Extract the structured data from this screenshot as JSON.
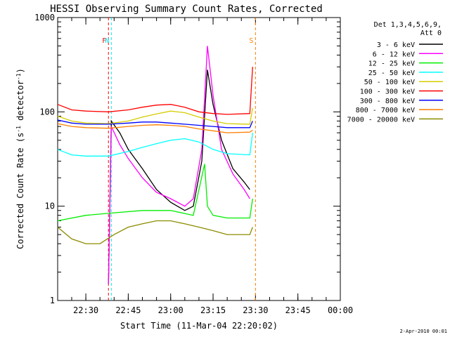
{
  "chart_data": {
    "type": "line",
    "title": "HESSI Observing Summary Count Rates, Corrected",
    "xlabel": "Start Time (11-Mar-04 22:20:02)",
    "ylabel": "Corrected Count Rate (s⁻¹ detector⁻¹)",
    "ylabel_main": "Corrected Count Rate (s",
    "ylabel_sup1": "-1",
    "ylabel_mid": " detector",
    "ylabel_sup2": "-1",
    "ylabel_end": ")",
    "yscale": "log",
    "ylim": [
      1,
      1000
    ],
    "yticks": [
      "1",
      "10",
      "100",
      "1000"
    ],
    "xlim": [
      "22:20:02",
      "00:00:00"
    ],
    "xticks": [
      "22:30",
      "22:45",
      "23:00",
      "23:15",
      "23:30",
      "23:45",
      "00:00"
    ],
    "grid": false,
    "legend_title_1": "Det 1,3,4,5,6,9,",
    "legend_title_2": "Att 0",
    "legend_position": "right",
    "footer": "2-Apr-2010 00:01",
    "flags": [
      {
        "label": "F",
        "color": "#ff0000",
        "at": "22:38"
      },
      {
        "label": "N",
        "color": "#00e5ee",
        "at": "22:39"
      },
      {
        "label": "S",
        "color": "#ff7f00",
        "at": "23:30"
      }
    ],
    "series": [
      {
        "name": "3 - 6 keV",
        "color": "#000000",
        "points": [
          [
            "22:38",
            1.5
          ],
          [
            "22:39",
            80
          ],
          [
            "22:42",
            60
          ],
          [
            "22:45",
            40
          ],
          [
            "22:50",
            25
          ],
          [
            "22:55",
            15
          ],
          [
            "23:00",
            11
          ],
          [
            "23:05",
            9
          ],
          [
            "23:08",
            10
          ],
          [
            "23:11",
            30
          ],
          [
            "23:13",
            280
          ],
          [
            "23:15",
            120
          ],
          [
            "23:18",
            50
          ],
          [
            "23:22",
            25
          ],
          [
            "23:26",
            18
          ],
          [
            "23:28",
            15
          ]
        ]
      },
      {
        "name": "6 - 12 keV",
        "color": "#ff00ff",
        "points": [
          [
            "22:38",
            1.5
          ],
          [
            "22:39",
            70
          ],
          [
            "22:42",
            45
          ],
          [
            "22:45",
            32
          ],
          [
            "22:50",
            20
          ],
          [
            "22:55",
            14
          ],
          [
            "23:00",
            12
          ],
          [
            "23:05",
            10
          ],
          [
            "23:08",
            12
          ],
          [
            "23:11",
            40
          ],
          [
            "23:13",
            500
          ],
          [
            "23:15",
            150
          ],
          [
            "23:18",
            40
          ],
          [
            "23:22",
            22
          ],
          [
            "23:26",
            15
          ],
          [
            "23:28",
            12
          ]
        ]
      },
      {
        "name": "12 - 25 keV",
        "color": "#00ee00",
        "points": [
          [
            "22:20",
            7
          ],
          [
            "22:30",
            8
          ],
          [
            "22:40",
            8.5
          ],
          [
            "22:50",
            9
          ],
          [
            "23:00",
            9
          ],
          [
            "23:08",
            8
          ],
          [
            "23:12",
            28
          ],
          [
            "23:13",
            10
          ],
          [
            "23:15",
            8
          ],
          [
            "23:20",
            7.5
          ],
          [
            "23:28",
            7.5
          ],
          [
            "23:29",
            12
          ]
        ]
      },
      {
        "name": "25 - 50 keV",
        "color": "#00ffff",
        "points": [
          [
            "22:20",
            40
          ],
          [
            "22:25",
            35
          ],
          [
            "22:30",
            34
          ],
          [
            "22:38",
            34
          ],
          [
            "22:45",
            38
          ],
          [
            "22:50",
            42
          ],
          [
            "22:55",
            46
          ],
          [
            "23:00",
            50
          ],
          [
            "23:05",
            52
          ],
          [
            "23:10",
            48
          ],
          [
            "23:15",
            40
          ],
          [
            "23:20",
            36
          ],
          [
            "23:28",
            35
          ],
          [
            "23:29",
            60
          ]
        ]
      },
      {
        "name": "50 - 100 keV",
        "color": "#d4cc00",
        "points": [
          [
            "22:20",
            90
          ],
          [
            "22:25",
            80
          ],
          [
            "22:30",
            76
          ],
          [
            "22:38",
            75
          ],
          [
            "22:45",
            80
          ],
          [
            "22:50",
            88
          ],
          [
            "22:55",
            95
          ],
          [
            "23:00",
            102
          ],
          [
            "23:05",
            98
          ],
          [
            "23:10",
            88
          ],
          [
            "23:15",
            80
          ],
          [
            "23:20",
            75
          ],
          [
            "23:28",
            74
          ],
          [
            "23:29",
            110
          ]
        ]
      },
      {
        "name": "100 - 300 keV",
        "color": "#ff0000",
        "points": [
          [
            "22:20",
            120
          ],
          [
            "22:25",
            105
          ],
          [
            "22:30",
            102
          ],
          [
            "22:38",
            100
          ],
          [
            "22:45",
            105
          ],
          [
            "22:50",
            112
          ],
          [
            "22:55",
            118
          ],
          [
            "23:00",
            120
          ],
          [
            "23:05",
            112
          ],
          [
            "23:10",
            100
          ],
          [
            "23:15",
            96
          ],
          [
            "23:20",
            94
          ],
          [
            "23:28",
            96
          ],
          [
            "23:29",
            300
          ]
        ]
      },
      {
        "name": "300 - 800 keV",
        "color": "#0000ff",
        "points": [
          [
            "22:20",
            82
          ],
          [
            "22:25",
            76
          ],
          [
            "22:30",
            74
          ],
          [
            "22:38",
            74
          ],
          [
            "22:45",
            76
          ],
          [
            "22:50",
            78
          ],
          [
            "22:55",
            78
          ],
          [
            "23:00",
            76
          ],
          [
            "23:05",
            74
          ],
          [
            "23:10",
            72
          ],
          [
            "23:15",
            70
          ],
          [
            "23:20",
            68
          ],
          [
            "23:28",
            68
          ],
          [
            "23:29",
            80
          ]
        ]
      },
      {
        "name": "800 - 7000 keV",
        "color": "#ff7f00",
        "points": [
          [
            "22:20",
            75
          ],
          [
            "22:25",
            70
          ],
          [
            "22:30",
            68
          ],
          [
            "22:38",
            67
          ],
          [
            "22:45",
            70
          ],
          [
            "22:50",
            72
          ],
          [
            "22:55",
            73
          ],
          [
            "23:00",
            72
          ],
          [
            "23:05",
            70
          ],
          [
            "23:10",
            66
          ],
          [
            "23:15",
            63
          ],
          [
            "23:20",
            60
          ],
          [
            "23:28",
            61
          ],
          [
            "23:29",
            64
          ]
        ]
      },
      {
        "name": "7000 - 20000 keV",
        "color": "#8b8b00",
        "points": [
          [
            "22:20",
            6
          ],
          [
            "22:25",
            4.5
          ],
          [
            "22:30",
            4
          ],
          [
            "22:35",
            4
          ],
          [
            "22:40",
            5
          ],
          [
            "22:45",
            6
          ],
          [
            "22:50",
            6.5
          ],
          [
            "22:55",
            7
          ],
          [
            "23:00",
            7
          ],
          [
            "23:05",
            6.5
          ],
          [
            "23:10",
            6
          ],
          [
            "23:15",
            5.5
          ],
          [
            "23:20",
            5
          ],
          [
            "23:28",
            5
          ],
          [
            "23:29",
            6
          ]
        ]
      }
    ]
  }
}
